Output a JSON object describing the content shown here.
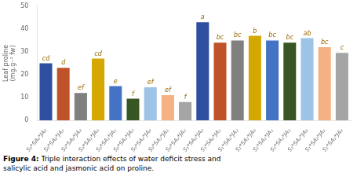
{
  "chart_data": {
    "type": "bar",
    "caption_bold": "Figure 4:",
    "caption": "  Triple interaction effects of water deficit stress and\nsalicylic acid and jasmonic acid on proline.",
    "y_label": "Leaf proline\n(mg.g⁻¹ fw)",
    "categories": [
      "S₀*SA₀*JA₀",
      "S₀*SA₀*JA₁",
      "S₀*SA₀*JA₂",
      "S₀*SA₁*JA₀",
      "S₀*SA₁*JA₁",
      "S₀*SA₁*JA₂",
      "S₀*SA₂*JA₀",
      "S₀*SA₂*JA₁",
      "S₀*SA₂*JA₂",
      "S₁*SA₀*JA₀",
      "S₁*SA₀*JA₁",
      "S₁*SA₀*JA₂",
      "S₁*SA₁*JA₀",
      "S₁*SA₁*JA₁",
      "S₁*SA₁*JA₂",
      "S₁*SA₂*JA₀",
      "S₁*SA₂*JA₁",
      "S₁*SA₂*JA₂"
    ],
    "values": [
      25.0,
      23.0,
      12.0,
      27.0,
      15.0,
      9.5,
      14.5,
      11.0,
      8.0,
      43.0,
      34.0,
      35.0,
      37.0,
      35.0,
      34.0,
      36.0,
      32.0,
      29.5
    ],
    "annotations": [
      "cd",
      "d",
      "ef",
      "cd",
      "e",
      "f",
      "ef",
      "ef",
      "f",
      "a",
      "bc",
      "bc",
      "b",
      "bc",
      "bc",
      "ab",
      "bc",
      "c"
    ],
    "colors": [
      "#2e4fa0",
      "#c0522a",
      "#808080",
      "#d4a800",
      "#4472c4",
      "#375623",
      "#9dc3e6",
      "#f4b183",
      "#a5a5a5",
      "#2e4fa0",
      "#c0522a",
      "#808080",
      "#d4a800",
      "#4472c4",
      "#375623",
      "#9dc3e6",
      "#f4b183",
      "#a5a5a5"
    ],
    "ylim": [
      0,
      50
    ],
    "yticks": [
      0,
      10,
      20,
      30,
      40,
      50
    ],
    "grid": false
  }
}
